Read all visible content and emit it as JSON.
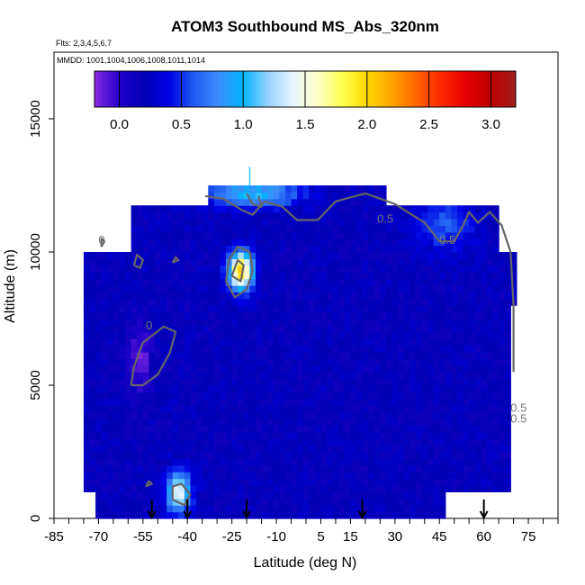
{
  "chart_data": {
    "type": "heatmap",
    "title": "ATOM3 Southbound MS_Abs_320nm",
    "flights_note": "Flts: 2,3,4,5,6,7",
    "dates_note": "MMDD: 1001,1004,1006,1008,1011,1014",
    "xlabel": "Latitude (deg N)",
    "ylabel": "Altitude (m)",
    "xlim": [
      -85,
      85
    ],
    "ylim": [
      0,
      17500
    ],
    "x_tick_labels": [
      "-85",
      "-70",
      "-55",
      "-40",
      "-25",
      "-10",
      "5",
      "15",
      "30",
      "45",
      "60",
      "75"
    ],
    "x_tick_values": [
      -85,
      -70,
      -55,
      -40,
      -25,
      -10,
      5,
      15,
      30,
      45,
      60,
      75
    ],
    "x_minor_tick_step": 5,
    "y_tick_labels": [
      "0",
      "5000",
      "10000",
      "15000"
    ],
    "y_tick_values": [
      0,
      5000,
      10000,
      15000
    ],
    "colorbar": {
      "range": [
        -0.2,
        3.2
      ],
      "tick_labels": [
        "0.0",
        "0.5",
        "1.0",
        "1.5",
        "2.0",
        "2.5",
        "3.0"
      ],
      "tick_values": [
        0,
        0.5,
        1.0,
        1.5,
        2.0,
        2.5,
        3.0
      ],
      "colors": [
        "#8a2be2",
        "#2200cc",
        "#0000b4",
        "#0000e6",
        "#1e5af0",
        "#3c8cff",
        "#00b4ff",
        "#96d2ff",
        "#e8f4ff",
        "#ffffc8",
        "#ffff50",
        "#ffd700",
        "#ffa500",
        "#ff6400",
        "#ff2800",
        "#e60000",
        "#be0000",
        "#a01e1e"
      ]
    },
    "contour_labels": [
      "0",
      "0.5",
      "0.5",
      "0",
      "0.5",
      "0.5"
    ],
    "profile_arrow_latitudes": [
      -52,
      -40,
      -20,
      19,
      60
    ],
    "field": {
      "background_value": 0.2,
      "x_range": [
        -75,
        71
      ],
      "y_range": [
        0,
        12500
      ],
      "features": [
        {
          "lat": -43,
          "alt": 1000,
          "value": 1.5,
          "note": "near-surface plume"
        },
        {
          "lat": -22,
          "alt": 9300,
          "value": 2.1,
          "note": "upper-tropospheric maximum"
        },
        {
          "lat": -56,
          "alt": 6000,
          "value": -0.1,
          "note": "low-value pocket"
        },
        {
          "lat": -18,
          "alt": 12200,
          "value": 1.0,
          "note": "upper layer"
        },
        {
          "lat": 47,
          "alt": 11000,
          "value": 0.6,
          "note": "upper layer north"
        }
      ]
    }
  }
}
